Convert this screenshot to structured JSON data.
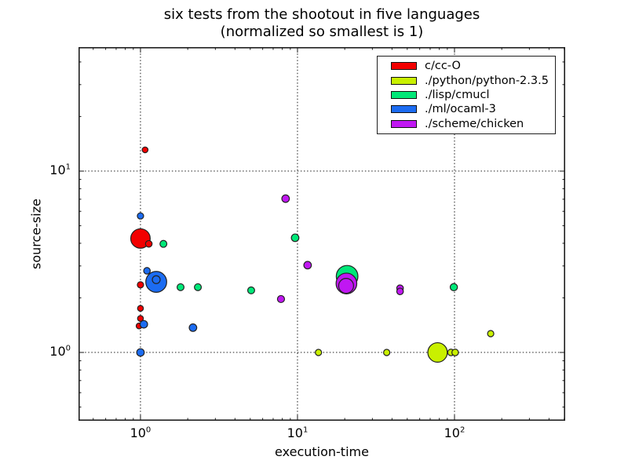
{
  "figure": {
    "title_line1": "six tests from the shootout in five languages",
    "title_line2": "(normalized so smallest is 1)",
    "xlabel": "execution-time",
    "ylabel": "source-size"
  },
  "legend": {
    "position": "upper-right",
    "items": [
      {
        "label": "c/cc-O",
        "color": "#f20000"
      },
      {
        "label": "./python/python-2.3.5",
        "color": "#c9f000"
      },
      {
        "label": "./lisp/cmucl",
        "color": "#00e878"
      },
      {
        "label": "./ml/ocaml-3",
        "color": "#1c6cf2"
      },
      {
        "label": "./scheme/chicken",
        "color": "#c017f2"
      }
    ]
  },
  "chart_data": {
    "type": "scatter",
    "title": "six tests from the shootout in five languages (normalized so smallest is 1)",
    "xlabel": "execution-time",
    "ylabel": "source-size",
    "xscale": "log",
    "yscale": "log",
    "xlim": [
      0.403,
      507
    ],
    "ylim": [
      0.42,
      48.3
    ],
    "grid": {
      "show": true,
      "style": "dotted",
      "x_lines": [
        1,
        10,
        100
      ],
      "y_lines": [
        1,
        10
      ]
    },
    "legend_position": "upper-right",
    "x_ticks": [
      {
        "value": 1,
        "base": "10",
        "exp": "0"
      },
      {
        "value": 10,
        "base": "10",
        "exp": "1"
      },
      {
        "value": 100,
        "base": "10",
        "exp": "2"
      }
    ],
    "y_ticks": [
      {
        "value": 1,
        "base": "10",
        "exp": "0"
      },
      {
        "value": 10,
        "base": "10",
        "exp": "1"
      }
    ],
    "point_columns": [
      "execution-time",
      "source-size",
      "marker-radius-px"
    ],
    "series": [
      {
        "name": "c/cc-O",
        "color": "#f20000",
        "points": [
          [
            1.07,
            13.1,
            3.7
          ],
          [
            1.0,
            4.25,
            12.4
          ],
          [
            1.13,
            3.97,
            4.2
          ],
          [
            1.0,
            2.36,
            4.0
          ],
          [
            1.0,
            1.75,
            3.7
          ],
          [
            1.0,
            1.54,
            3.7
          ],
          [
            0.98,
            1.4,
            3.7
          ]
        ]
      },
      {
        "name": "./python/python-2.3.5",
        "color": "#c9f000",
        "points": [
          [
            13.6,
            1.0,
            4.0
          ],
          [
            37.0,
            1.0,
            4.0
          ],
          [
            78.0,
            1.0,
            12.4
          ],
          [
            95.0,
            1.0,
            4.2
          ],
          [
            101.0,
            1.0,
            4.2
          ],
          [
            170.0,
            1.27,
            4.0
          ]
        ]
      },
      {
        "name": "./lisp/cmucl",
        "color": "#00e878",
        "points": [
          [
            1.4,
            3.97,
            4.4
          ],
          [
            1.8,
            2.29,
            4.4
          ],
          [
            2.32,
            2.29,
            4.4
          ],
          [
            5.07,
            2.2,
            4.4
          ],
          [
            9.66,
            4.29,
            4.8
          ],
          [
            20.7,
            2.63,
            13.8
          ],
          [
            99.0,
            2.29,
            4.6
          ]
        ]
      },
      {
        "name": "./ml/ocaml-3",
        "color": "#1c6cf2",
        "points": [
          [
            1.0,
            5.66,
            4.0
          ],
          [
            1.1,
            2.82,
            4.2
          ],
          [
            1.26,
            2.45,
            13.3
          ],
          [
            1.26,
            2.52,
            5.0
          ],
          [
            1.05,
            1.43,
            4.8
          ],
          [
            2.16,
            1.37,
            4.8
          ],
          [
            1.0,
            1.0,
            4.8
          ]
        ]
      },
      {
        "name": "./scheme/chicken",
        "color": "#c017f2",
        "points": [
          [
            8.4,
            7.05,
            4.8
          ],
          [
            11.6,
            3.03,
            4.8
          ],
          [
            7.85,
            1.97,
            4.5
          ],
          [
            20.5,
            2.4,
            13.2
          ],
          [
            20.4,
            2.33,
            9.5
          ],
          [
            45.0,
            2.26,
            4.2
          ],
          [
            45.0,
            2.17,
            4.2
          ]
        ]
      }
    ]
  }
}
